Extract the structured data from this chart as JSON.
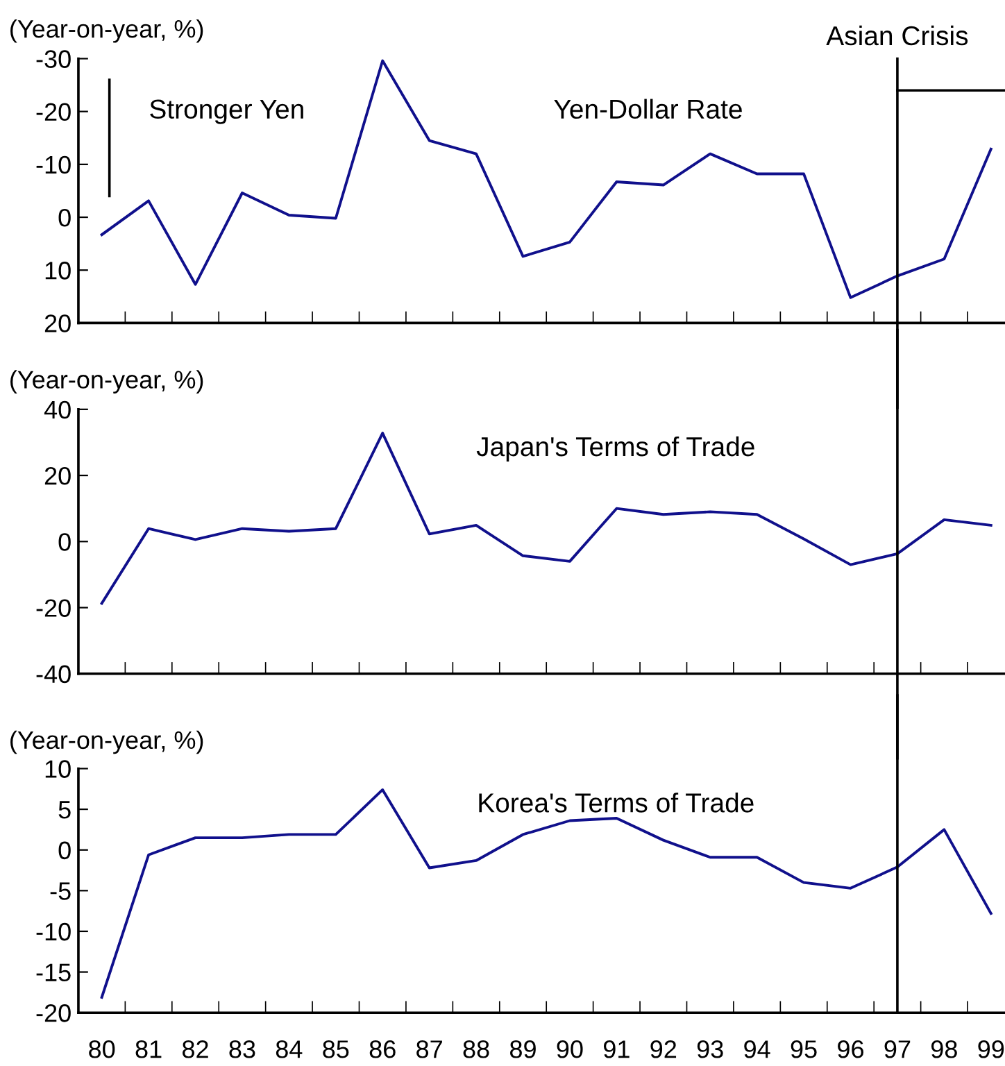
{
  "chart_data": [
    {
      "type": "line",
      "title": "Yen-Dollar Rate",
      "ylabel": "(Year-on-year, %)",
      "categories": [
        "80",
        "81",
        "82",
        "83",
        "84",
        "85",
        "86",
        "87",
        "88",
        "89",
        "90",
        "91",
        "92",
        "93",
        "94",
        "95",
        "96",
        "97",
        "98",
        "99"
      ],
      "series": [
        {
          "color": "#10108c",
          "values": [
            3.3,
            -3.1,
            12.7,
            -4.6,
            -0.4,
            0.2,
            -29.6,
            -14.5,
            -12.0,
            7.4,
            4.7,
            -6.7,
            -6.1,
            -12.0,
            -8.2,
            -8.2,
            15.2,
            11.1,
            7.9,
            -12.9
          ]
        }
      ],
      "ylim": [
        20,
        -30
      ],
      "yticks": [
        {
          "value": -30,
          "label": "-30"
        },
        {
          "value": -20,
          "label": "-20"
        },
        {
          "value": -10,
          "label": "-10"
        },
        0,
        10,
        20
      ],
      "ref_lines": [
        {
          "axis": "x",
          "value": "97",
          "label": "Asian Crisis",
          "color": "#000000"
        }
      ],
      "annotations": [
        "Stronger Yen"
      ],
      "tick_labels": "y",
      "grid": false,
      "legend": false,
      "marker": "none",
      "line_style": "solid"
    },
    {
      "type": "line",
      "title": "Japan's Terms of Trade",
      "ylabel": "(Year-on-year, %)",
      "categories": [
        "80",
        "81",
        "82",
        "83",
        "84",
        "85",
        "86",
        "87",
        "88",
        "89",
        "90",
        "91",
        "92",
        "93",
        "94",
        "95",
        "96",
        "97",
        "98",
        "99"
      ],
      "series": [
        {
          "color": "#10108c",
          "values": [
            -18.7,
            3.9,
            0.6,
            3.9,
            3.1,
            3.9,
            32.8,
            2.3,
            4.9,
            -4.3,
            -6.0,
            10.0,
            8.2,
            9.0,
            8.2,
            0.8,
            -7.0,
            -3.7,
            6.6,
            4.9
          ]
        }
      ],
      "ylim": [
        -40,
        40
      ],
      "yticks": [
        -40,
        -20,
        0,
        20,
        40
      ],
      "ref_lines": [
        {
          "axis": "x",
          "value": "97",
          "color": "#000000"
        }
      ],
      "tick_labels": "y",
      "grid": false,
      "legend": false,
      "marker": "none",
      "line_style": "solid"
    },
    {
      "type": "line",
      "title": "Korea's Terms of Trade",
      "ylabel": "(Year-on-year, %)",
      "categories": [
        "80",
        "81",
        "82",
        "83",
        "84",
        "85",
        "86",
        "87",
        "88",
        "89",
        "90",
        "91",
        "92",
        "93",
        "94",
        "95",
        "96",
        "97",
        "98",
        "99"
      ],
      "series": [
        {
          "color": "#10108c",
          "values": [
            -18.1,
            -0.6,
            1.5,
            1.5,
            1.9,
            1.9,
            7.4,
            -2.2,
            -1.3,
            1.9,
            3.6,
            3.9,
            1.2,
            -0.9,
            -0.9,
            -4.0,
            -4.7,
            -2.1,
            2.5,
            -7.8
          ]
        }
      ],
      "ylim": [
        -20,
        10
      ],
      "yticks": [
        -20,
        -15,
        -10,
        -5,
        0,
        5,
        10
      ],
      "ref_lines": [
        {
          "axis": "x",
          "value": "97",
          "color": "#000000"
        }
      ],
      "grid": false,
      "legend": false,
      "marker": "none",
      "line_style": "solid"
    }
  ]
}
